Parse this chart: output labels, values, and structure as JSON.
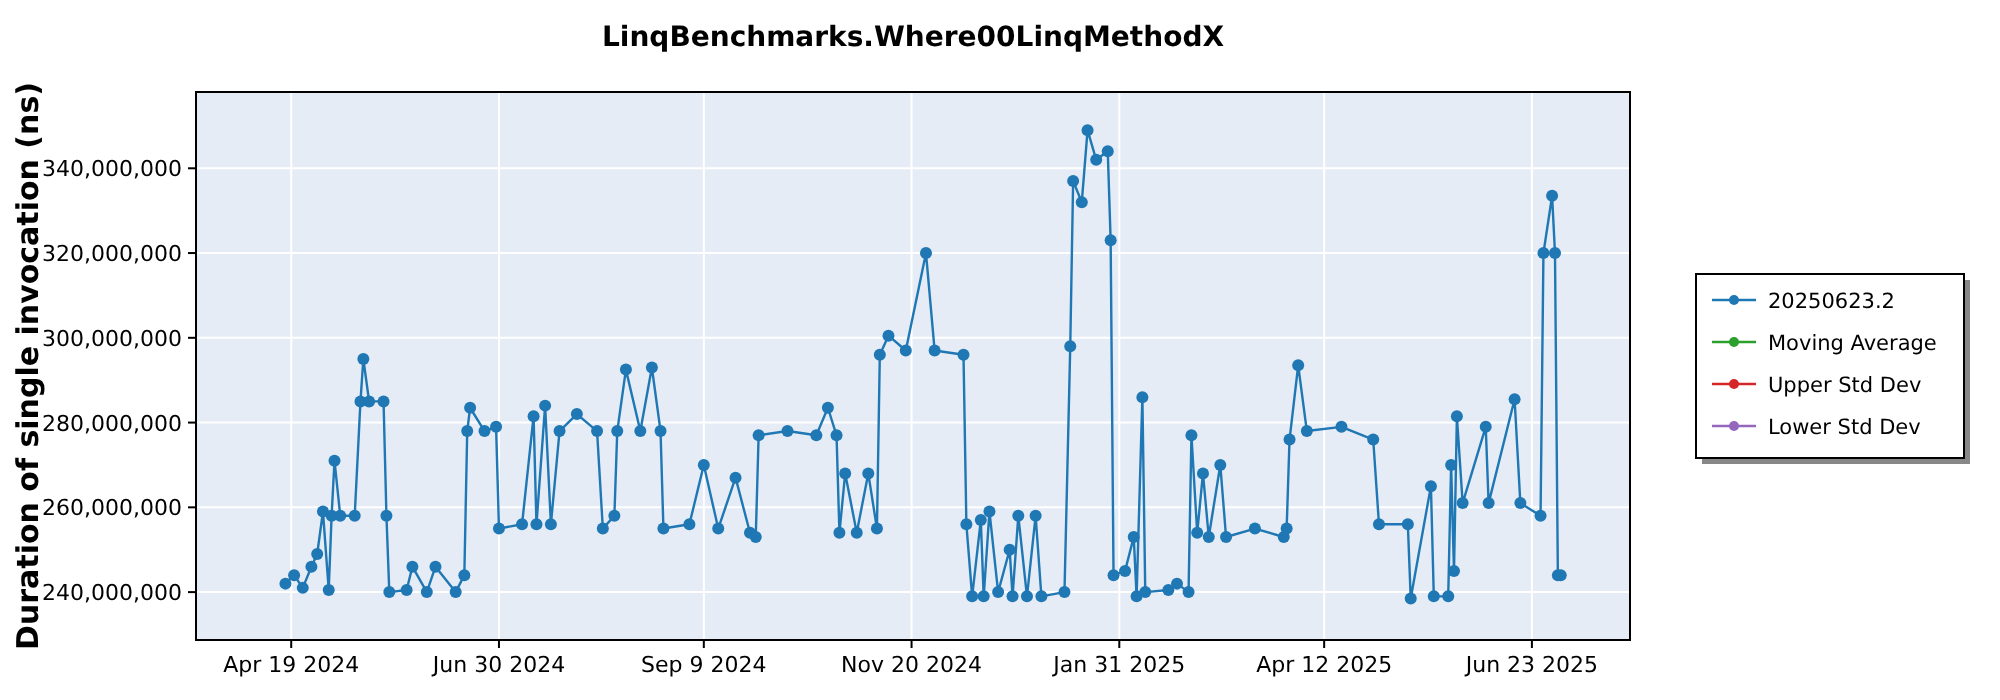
{
  "chart_data": {
    "type": "line",
    "title": "LinqBenchmarks.Where00LinqMethodX",
    "ylabel": "Duration of single invocation (ns)",
    "xlim": [
      "2024-03-17",
      "2025-07-27"
    ],
    "xticks": [
      {
        "value": "2024-04-19",
        "label": "Apr 19 2024"
      },
      {
        "value": "2024-06-30",
        "label": "Jun 30 2024"
      },
      {
        "value": "2024-09-09",
        "label": "Sep 9 2024"
      },
      {
        "value": "2024-11-20",
        "label": "Nov 20 2024"
      },
      {
        "value": "2025-01-31",
        "label": "Jan 31 2025"
      },
      {
        "value": "2025-04-12",
        "label": "Apr 12 2025"
      },
      {
        "value": "2025-06-23",
        "label": "Jun 23 2025"
      }
    ],
    "ylim": [
      228700000,
      358000000
    ],
    "yticks": [
      {
        "value": 240000000,
        "label": "240,000,000"
      },
      {
        "value": 260000000,
        "label": "260,000,000"
      },
      {
        "value": 280000000,
        "label": "280,000,000"
      },
      {
        "value": 300000000,
        "label": "300,000,000"
      },
      {
        "value": 320000000,
        "label": "320,000,000"
      },
      {
        "value": 340000000,
        "label": "340,000,000"
      }
    ],
    "grid": true,
    "legend": "right",
    "marker": "circle",
    "x": [
      "2024-04-17",
      "2024-04-20",
      "2024-04-23",
      "2024-04-26",
      "2024-04-28",
      "2024-04-30",
      "2024-05-02",
      "2024-05-03",
      "2024-05-04",
      "2024-05-06",
      "2024-05-11",
      "2024-05-13",
      "2024-05-14",
      "2024-05-16",
      "2024-05-21",
      "2024-05-22",
      "2024-05-23",
      "2024-05-29",
      "2024-05-31",
      "2024-06-05",
      "2024-06-08",
      "2024-06-15",
      "2024-06-18",
      "2024-06-19",
      "2024-06-20",
      "2024-06-25",
      "2024-06-29",
      "2024-06-30",
      "2024-07-08",
      "2024-07-12",
      "2024-07-13",
      "2024-07-16",
      "2024-07-18",
      "2024-07-21",
      "2024-07-27",
      "2024-08-03",
      "2024-08-05",
      "2024-08-09",
      "2024-08-10",
      "2024-08-13",
      "2024-08-18",
      "2024-08-22",
      "2024-08-25",
      "2024-08-26",
      "2024-09-04",
      "2024-09-09",
      "2024-09-14",
      "2024-09-20",
      "2024-09-25",
      "2024-09-27",
      "2024-09-28",
      "2024-10-08",
      "2024-10-18",
      "2024-10-22",
      "2024-10-25",
      "2024-10-26",
      "2024-10-28",
      "2024-11-01",
      "2024-11-05",
      "2024-11-08",
      "2024-11-09",
      "2024-11-12",
      "2024-11-18",
      "2024-11-25",
      "2024-11-28",
      "2024-12-08",
      "2024-12-09",
      "2024-12-11",
      "2024-12-14",
      "2024-12-15",
      "2024-12-17",
      "2024-12-20",
      "2024-12-24",
      "2024-12-25",
      "2024-12-27",
      "2024-12-30",
      "2025-01-02",
      "2025-01-04",
      "2025-01-12",
      "2025-01-14",
      "2025-01-15",
      "2025-01-18",
      "2025-01-20",
      "2025-01-23",
      "2025-01-27",
      "2025-01-28",
      "2025-01-29",
      "2025-02-02",
      "2025-02-05",
      "2025-02-06",
      "2025-02-08",
      "2025-02-09",
      "2025-02-17",
      "2025-02-20",
      "2025-02-24",
      "2025-02-25",
      "2025-02-27",
      "2025-03-01",
      "2025-03-03",
      "2025-03-07",
      "2025-03-09",
      "2025-03-19",
      "2025-03-29",
      "2025-03-30",
      "2025-03-31",
      "2025-04-03",
      "2025-04-06",
      "2025-04-18",
      "2025-04-29",
      "2025-05-01",
      "2025-05-11",
      "2025-05-12",
      "2025-05-19",
      "2025-05-20",
      "2025-05-25",
      "2025-05-26",
      "2025-05-27",
      "2025-05-28",
      "2025-05-30",
      "2025-06-07",
      "2025-06-08",
      "2025-06-17",
      "2025-06-19",
      "2025-06-26",
      "2025-06-27",
      "2025-06-30",
      "2025-07-01",
      "2025-07-02",
      "2025-07-03"
    ],
    "series": [
      {
        "name": "20250623.2",
        "color": "#1f77b4",
        "values": [
          242000000,
          244000000,
          241000000,
          246000000,
          249000000,
          259000000,
          240500000,
          258000000,
          271000000,
          258000000,
          258000000,
          285000000,
          295000000,
          285000000,
          285000000,
          258000000,
          240000000,
          240500000,
          246000000,
          240000000,
          246000000,
          240000000,
          244000000,
          278000000,
          283500000,
          278000000,
          279000000,
          255000000,
          256000000,
          281500000,
          256000000,
          284000000,
          256000000,
          278000000,
          282000000,
          278000000,
          255000000,
          258000000,
          278000000,
          292500000,
          278000000,
          293000000,
          278000000,
          255000000,
          256000000,
          270000000,
          255000000,
          267000000,
          254000000,
          253000000,
          277000000,
          278000000,
          277000000,
          283500000,
          277000000,
          254000000,
          268000000,
          254000000,
          268000000,
          255000000,
          296000000,
          300500000,
          297000000,
          320000000,
          297000000,
          296000000,
          256000000,
          239000000,
          257000000,
          239000000,
          259000000,
          240000000,
          250000000,
          239000000,
          258000000,
          239000000,
          258000000,
          239000000,
          240000000,
          298000000,
          337000000,
          332000000,
          349000000,
          342000000,
          344000000,
          323000000,
          244000000,
          245000000,
          253000000,
          239000000,
          286000000,
          240000000,
          240500000,
          242000000,
          240000000,
          277000000,
          254000000,
          268000000,
          253000000,
          270000000,
          253000000,
          255000000,
          253000000,
          255000000,
          276000000,
          293500000,
          278000000,
          279000000,
          276000000,
          256000000,
          256000000,
          238500000,
          265000000,
          239000000,
          239000000,
          270000000,
          245000000,
          281500000,
          261000000,
          279000000,
          261000000,
          285500000,
          261000000,
          258000000,
          320000000,
          333500000,
          320000000,
          244000000,
          244000000
        ]
      },
      {
        "name": "Moving Average",
        "color": "#2ca02c",
        "values": [
          null,
          null,
          null,
          null,
          null,
          null,
          null,
          null,
          null,
          null,
          null,
          null,
          null,
          null,
          null,
          null,
          null,
          null,
          null,
          null,
          null,
          null,
          null,
          null,
          null,
          null,
          null,
          null,
          null,
          null,
          null,
          null,
          null,
          null,
          null,
          null,
          null,
          null,
          null,
          null,
          null,
          null,
          null,
          null,
          null,
          null,
          null,
          null,
          null,
          null,
          null,
          null,
          null,
          null,
          null,
          null,
          null,
          null,
          null,
          null,
          null,
          null,
          null,
          null,
          null,
          null,
          null,
          null,
          null,
          null,
          null,
          null,
          null,
          null,
          null,
          null,
          null,
          null,
          null,
          null,
          null,
          null,
          null,
          null,
          null,
          null,
          null,
          null,
          null,
          null,
          null,
          null,
          null,
          null,
          null,
          null,
          null,
          null,
          null,
          null,
          null,
          null,
          null,
          null,
          null,
          null,
          null,
          null,
          null,
          null,
          null,
          null,
          null,
          null,
          null,
          null,
          null,
          null,
          null,
          null,
          null,
          null,
          null,
          null,
          null,
          null,
          null,
          null,
          null
        ]
      },
      {
        "name": "Upper Std Dev",
        "color": "#d62728",
        "values": [
          null,
          null,
          null,
          null,
          null,
          null,
          null,
          null,
          null,
          null,
          null,
          null,
          null,
          null,
          null,
          null,
          null,
          null,
          null,
          null,
          null,
          null,
          null,
          null,
          null,
          null,
          null,
          null,
          null,
          null,
          null,
          null,
          null,
          null,
          null,
          null,
          null,
          null,
          null,
          null,
          null,
          null,
          null,
          null,
          null,
          null,
          null,
          null,
          null,
          null,
          null,
          null,
          null,
          null,
          null,
          null,
          null,
          null,
          null,
          null,
          null,
          null,
          null,
          null,
          null,
          null,
          null,
          null,
          null,
          null,
          null,
          null,
          null,
          null,
          null,
          null,
          null,
          null,
          null,
          null,
          null,
          null,
          null,
          null,
          null,
          null,
          null,
          null,
          null,
          null,
          null,
          null,
          null,
          null,
          null,
          null,
          null,
          null,
          null,
          null,
          null,
          null,
          null,
          null,
          null,
          null,
          null,
          null,
          null,
          null,
          null,
          null,
          null,
          null,
          null,
          null,
          null,
          null,
          null,
          null,
          null,
          null,
          null,
          null,
          null,
          null,
          null,
          null,
          null
        ]
      },
      {
        "name": "Lower Std Dev",
        "color": "#9467bd",
        "values": [
          null,
          null,
          null,
          null,
          null,
          null,
          null,
          null,
          null,
          null,
          null,
          null,
          null,
          null,
          null,
          null,
          null,
          null,
          null,
          null,
          null,
          null,
          null,
          null,
          null,
          null,
          null,
          null,
          null,
          null,
          null,
          null,
          null,
          null,
          null,
          null,
          null,
          null,
          null,
          null,
          null,
          null,
          null,
          null,
          null,
          null,
          null,
          null,
          null,
          null,
          null,
          null,
          null,
          null,
          null,
          null,
          null,
          null,
          null,
          null,
          null,
          null,
          null,
          null,
          null,
          null,
          null,
          null,
          null,
          null,
          null,
          null,
          null,
          null,
          null,
          null,
          null,
          null,
          null,
          null,
          null,
          null,
          null,
          null,
          null,
          null,
          null,
          null,
          null,
          null,
          null,
          null,
          null,
          null,
          null,
          null,
          null,
          null,
          null,
          null,
          null,
          null,
          null,
          null,
          null,
          null,
          null,
          null,
          null,
          null,
          null,
          null,
          null,
          null,
          null,
          null,
          null,
          null,
          null,
          null,
          null,
          null,
          null,
          null,
          null,
          null,
          null,
          null,
          null
        ]
      }
    ]
  }
}
